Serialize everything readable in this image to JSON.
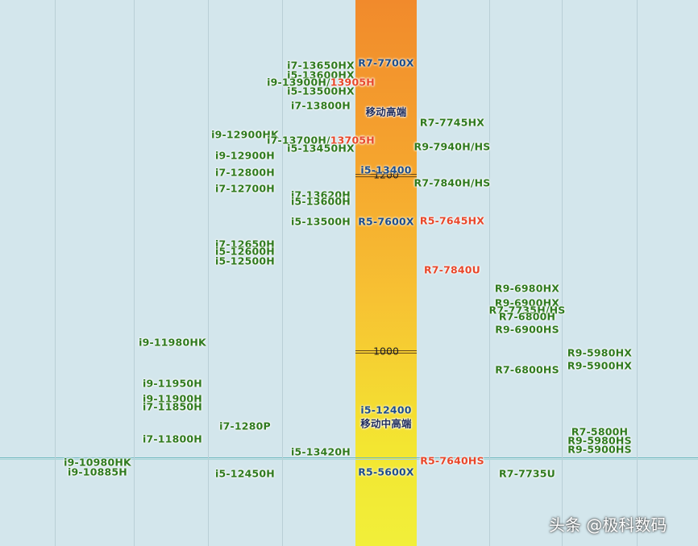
{
  "chart_data": {
    "type": "table",
    "score_axis": {
      "label_1200": "1200",
      "label_1000": "1000",
      "max_visible": 1290,
      "min_visible": 860
    },
    "columns": [
      {
        "id": "c1",
        "items": [
          {
            "text": "i9-10980HK",
            "score": 873
          },
          {
            "text": "i9-10885H",
            "score": 862
          }
        ]
      },
      {
        "id": "c2",
        "items": [
          {
            "text": "i9-11980HK",
            "score": 1009
          },
          {
            "text": "i9-11950H",
            "score": 963
          },
          {
            "text": "i9-11900H",
            "score": 945
          },
          {
            "text": "i7-11850H",
            "score": 936
          },
          {
            "text": "i7-11800H",
            "score": 900
          }
        ]
      },
      {
        "id": "c3",
        "items": [
          {
            "text": "i9-12900HK",
            "score": 1245
          },
          {
            "text": "i9-12900H",
            "score": 1221
          },
          {
            "text": "i7-12800H",
            "score": 1202
          },
          {
            "text": "i7-12700H",
            "score": 1184
          },
          {
            "text": "i7-12650H",
            "score": 1121
          },
          {
            "text": "i5-12600H",
            "score": 1112
          },
          {
            "text": "i5-12500H",
            "score": 1101
          },
          {
            "text": "i7-1280P",
            "score": 914
          },
          {
            "text": "i5-12450H",
            "score": 860
          }
        ]
      },
      {
        "id": "c4",
        "items": [
          {
            "text": "i7-13650HX",
            "score": 1323
          },
          {
            "text": "i5-13600HX",
            "score": 1312
          },
          {
            "text": "i9-13900H/",
            "text_red": "13905H",
            "score": 1304
          },
          {
            "text": "i5-13500HX",
            "score": 1294
          },
          {
            "text": "i7-13800H",
            "score": 1278
          },
          {
            "text": "i7-13700H/",
            "text_red": "13705H",
            "score": 1238
          },
          {
            "text": "i5-13450HX",
            "score": 1229
          },
          {
            "text": "i7-13620H",
            "score": 1176
          },
          {
            "text": "i5-13600H",
            "score": 1169
          },
          {
            "text": "i5-13500H",
            "score": 1146
          },
          {
            "text": "i5-13420H",
            "score": 885
          }
        ]
      }
    ],
    "bar_labels": [
      {
        "text": "R7-7700X",
        "score": 1326,
        "style": "blue"
      },
      {
        "text": "移动高端",
        "score": 1271,
        "style": "tier"
      },
      {
        "text": "i5-13400",
        "score": 1205,
        "style": "blue"
      },
      {
        "text": "R5-7600X",
        "score": 1146,
        "style": "blue"
      },
      {
        "text": "i5-12400",
        "score": 932,
        "style": "blue"
      },
      {
        "text": "移动中高端",
        "score": 918,
        "style": "tier"
      },
      {
        "text": "R5-5600X",
        "score": 862,
        "style": "blue"
      }
    ],
    "amd_columns": [
      {
        "id": "a1",
        "items": [
          {
            "text": "R7-7745HX",
            "score": 1258,
            "style": "green"
          },
          {
            "text": "R9-7940H/HS",
            "score": 1231,
            "style": "green"
          },
          {
            "text": "R7-7840H/HS",
            "score": 1190,
            "style": "green"
          },
          {
            "text": "R5-7645HX",
            "score": 1147,
            "style": "red"
          },
          {
            "text": "R7-7840U",
            "score": 1091,
            "style": "red"
          },
          {
            "text": "R5-7640HS",
            "score": 875,
            "style": "red"
          }
        ]
      },
      {
        "id": "a2",
        "items": [
          {
            "text": "R9-6980HX",
            "score": 1070,
            "style": "green"
          },
          {
            "text": "R9-6900HX",
            "score": 1054,
            "style": "green"
          },
          {
            "text": "R7-7735H/HS",
            "score": 1046,
            "style": "green"
          },
          {
            "text": "R7-6800H",
            "score": 1038,
            "style": "green"
          },
          {
            "text": "R9-6900HS",
            "score": 1024,
            "style": "green"
          },
          {
            "text": "R7-6800HS",
            "score": 978,
            "style": "green"
          },
          {
            "text": "R7-7735U",
            "score": 860,
            "style": "green"
          }
        ]
      },
      {
        "id": "a3",
        "items": [
          {
            "text": "R9-5980HX",
            "score": 997,
            "style": "green"
          },
          {
            "text": "R9-5900HX",
            "score": 983,
            "style": "green"
          },
          {
            "text": "R7-5800H",
            "score": 908,
            "style": "green"
          },
          {
            "text": "R9-5980HS",
            "score": 898,
            "style": "green"
          },
          {
            "text": "R9-5900HS",
            "score": 888,
            "style": "green"
          }
        ]
      }
    ]
  },
  "watermark": "头条 @极科数码"
}
